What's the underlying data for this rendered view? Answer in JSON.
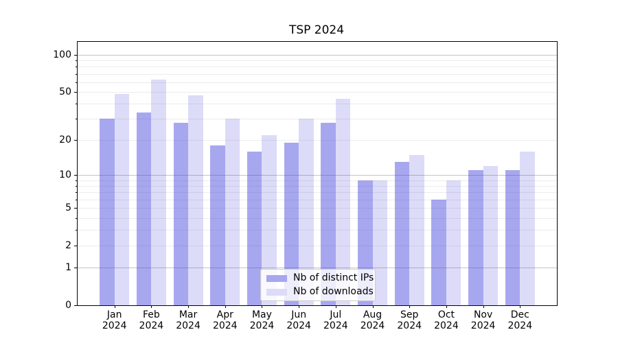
{
  "title": "TSP 2024",
  "chart_data": {
    "type": "bar",
    "title": "TSP 2024",
    "xlabel": "",
    "ylabel": "",
    "categories": [
      "Jan",
      "Feb",
      "Mar",
      "Apr",
      "May",
      "Jun",
      "Jul",
      "Aug",
      "Sep",
      "Oct",
      "Nov",
      "Dec"
    ],
    "category_year_line": "2024",
    "series": [
      {
        "name": "Nb of distinct IPs",
        "color": "#a7a7f0",
        "values": [
          30,
          34,
          28,
          18,
          16,
          19,
          28,
          9,
          13,
          6,
          11,
          11
        ]
      },
      {
        "name": "Nb of downloads",
        "color": "#dcdcf8",
        "values": [
          48,
          63,
          47,
          30,
          22,
          30,
          44,
          9,
          15,
          9,
          12,
          16
        ]
      }
    ],
    "yscale": "log1p",
    "ylim": [
      0,
      128
    ],
    "y_tick_labels": [
      "100",
      "50",
      "20",
      "10",
      "5",
      "2",
      "1",
      "0"
    ],
    "y_tick_values": [
      100,
      50,
      20,
      10,
      5,
      2,
      1,
      0
    ],
    "y_major_gridlines": [
      1,
      10,
      100
    ],
    "y_minor_gridlines": [
      2,
      3,
      4,
      5,
      6,
      7,
      8,
      9,
      20,
      30,
      40,
      50,
      60,
      70,
      80,
      90
    ],
    "grid": "on, both, drawn above bars",
    "legend_position": "lower center",
    "style_colors": {
      "bar_distinct_ips": "#a7a7f0",
      "bar_downloads": "#dcdcf8",
      "major_grid_on_white": "#c2c2c2",
      "minor_grid_on_white": "#eaeaea",
      "spine": "#000000",
      "text": "#000000",
      "legend_border": "#cccccc"
    }
  }
}
